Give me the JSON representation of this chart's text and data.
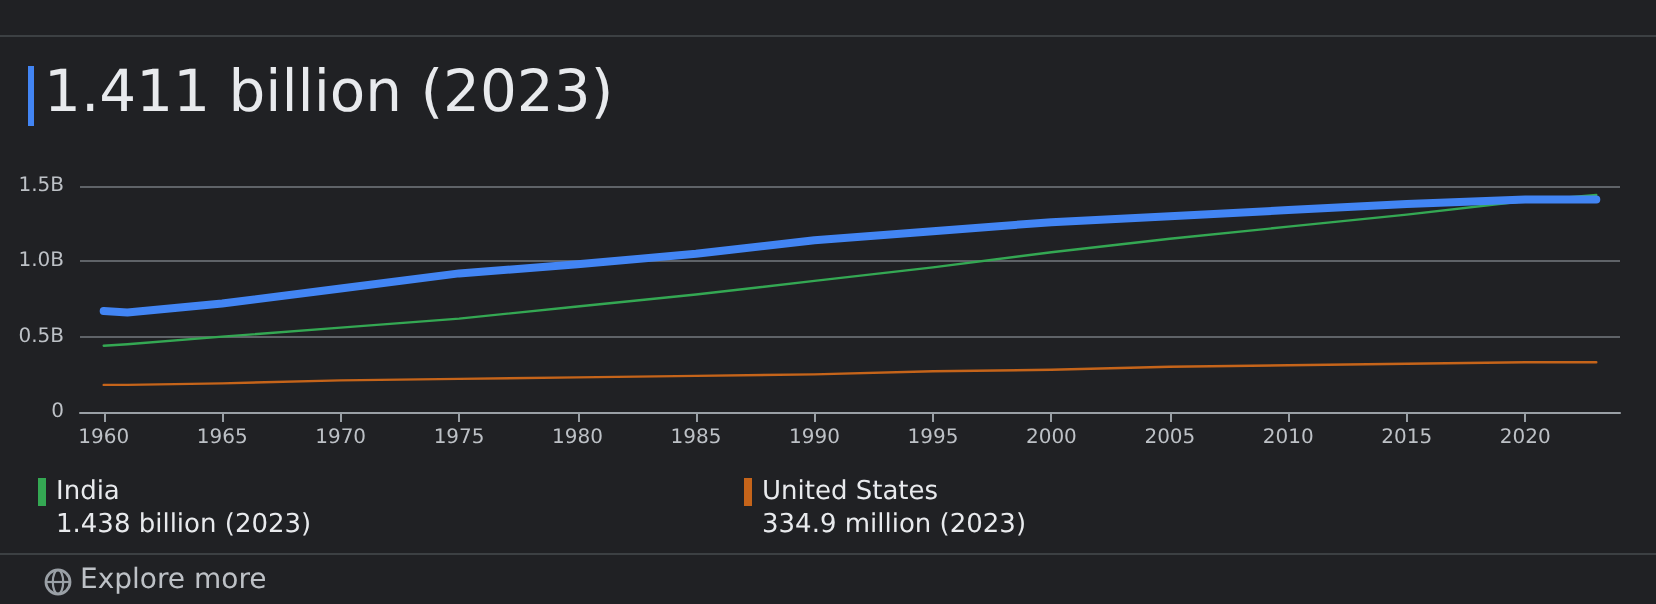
{
  "chart_data": {
    "type": "line",
    "title": "1.411 billion (2023)",
    "x": [
      1960,
      1961,
      1965,
      1970,
      1975,
      1980,
      1985,
      1990,
      1995,
      2000,
      2005,
      2010,
      2015,
      2020,
      2023
    ],
    "series": [
      {
        "color": "#4285f4",
        "values": [
          0.67,
          0.66,
          0.72,
          0.82,
          0.92,
          0.98,
          1.05,
          1.14,
          1.2,
          1.26,
          1.3,
          1.34,
          1.38,
          1.41,
          1.41
        ]
      },
      {
        "name": "India",
        "color": "#34a853",
        "values": [
          0.44,
          0.45,
          0.5,
          0.56,
          0.62,
          0.7,
          0.78,
          0.87,
          0.96,
          1.06,
          1.15,
          1.23,
          1.31,
          1.4,
          1.44
        ]
      },
      {
        "name": "United States",
        "color": "#c5641a",
        "values": [
          0.18,
          0.18,
          0.19,
          0.21,
          0.22,
          0.23,
          0.24,
          0.25,
          0.27,
          0.28,
          0.3,
          0.31,
          0.32,
          0.33,
          0.33
        ]
      }
    ],
    "xlim": [
      1959,
      2024
    ],
    "xticks": [
      1960,
      1965,
      1970,
      1975,
      1980,
      1985,
      1990,
      1995,
      2000,
      2005,
      2010,
      2015,
      2020
    ],
    "ylim": [
      0,
      1.5
    ],
    "yticks": [
      0,
      {
        "value": 0.5,
        "label": "0.5B"
      },
      {
        "value": 1,
        "label": "1.0B"
      },
      {
        "value": 1.5,
        "label": "1.5B"
      }
    ],
    "grid": "y",
    "legend": "bottom",
    "marker": "none",
    "annotations": [
      "1.438 billion (2023)",
      "334.9 million (2023)",
      "Explore more"
    ]
  }
}
